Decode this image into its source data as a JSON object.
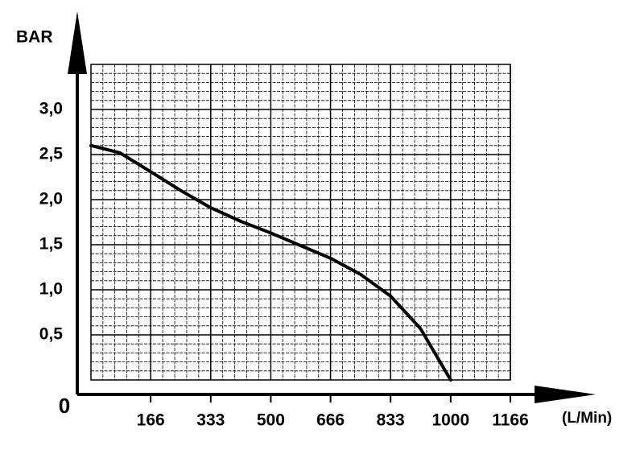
{
  "chart_data": {
    "type": "line",
    "y_axis_label": "BAR",
    "x_axis_label": "(L/Min)",
    "origin_label": "0",
    "x": [
      0,
      80,
      166,
      250,
      333,
      416,
      500,
      583,
      666,
      750,
      833,
      916,
      1000
    ],
    "series": [
      {
        "color": "#000000",
        "values": [
          2.6,
          2.52,
          2.31,
          2.1,
          1.91,
          1.76,
          1.63,
          1.49,
          1.35,
          1.17,
          0.93,
          0.57,
          0
        ]
      }
    ],
    "xlim": [
      0,
      1166
    ],
    "ylim": [
      0,
      3.5
    ],
    "xticks": [
      166,
      333,
      500,
      666,
      833,
      1000,
      1166
    ],
    "yticks": [
      {
        "value": 0.5,
        "label": "0,5"
      },
      {
        "value": 1,
        "label": "1,0"
      },
      {
        "value": 1.5,
        "label": "1,5"
      },
      {
        "value": 2,
        "label": "2,0"
      },
      {
        "value": 2.5,
        "label": "2,5"
      },
      {
        "value": 3,
        "label": "3,0"
      }
    ],
    "grid": true
  }
}
